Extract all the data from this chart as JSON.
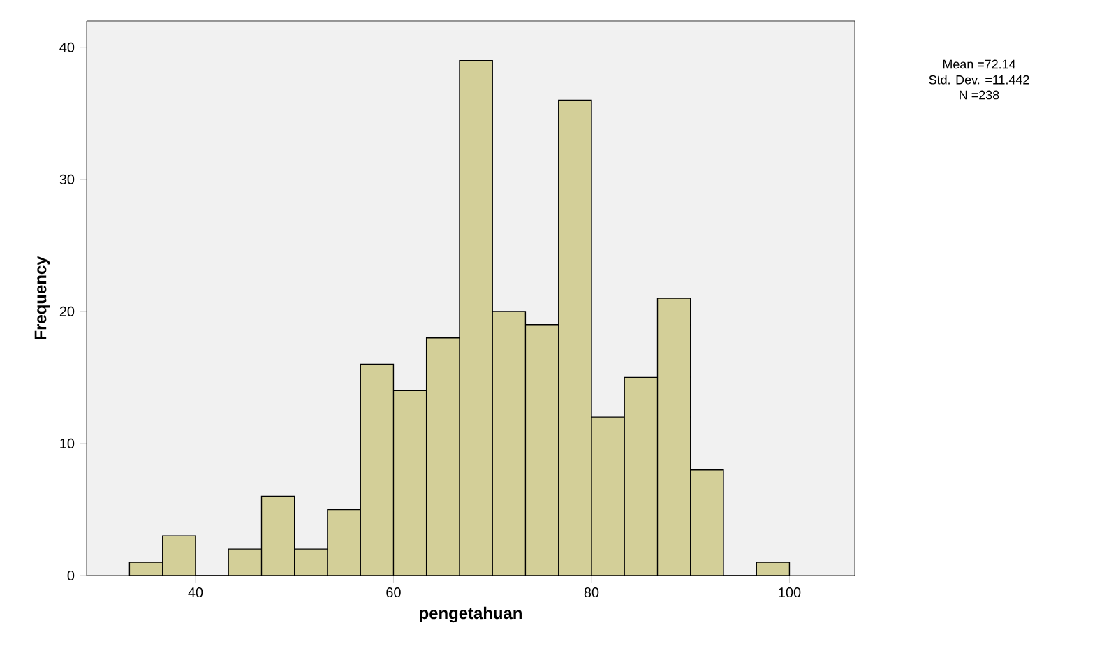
{
  "chart_data": {
    "type": "histogram",
    "xlabel": "pengetahuan",
    "ylabel": "Frequency",
    "bins": [
      33.33,
      36.67,
      40,
      43.33,
      46.67,
      50,
      53.33,
      56.67,
      60,
      63.33,
      66.67,
      70,
      73.33,
      76.67,
      80,
      83.33,
      86.67,
      90,
      93.33,
      96.67,
      100
    ],
    "values": [
      1,
      3,
      0,
      2,
      6,
      2,
      5,
      16,
      14,
      18,
      39,
      20,
      19,
      36,
      12,
      15,
      21,
      8,
      0,
      1
    ],
    "color": "#d3cf98",
    "xlim": [
      29,
      106.6
    ],
    "ylim": [
      0,
      42
    ],
    "xticks": [
      40,
      60,
      80,
      100
    ],
    "yticks": [
      0,
      10,
      20,
      30,
      40
    ],
    "annotations": [
      "Mean =72.14",
      "Std. Dev. =11.442",
      "N =238"
    ]
  }
}
